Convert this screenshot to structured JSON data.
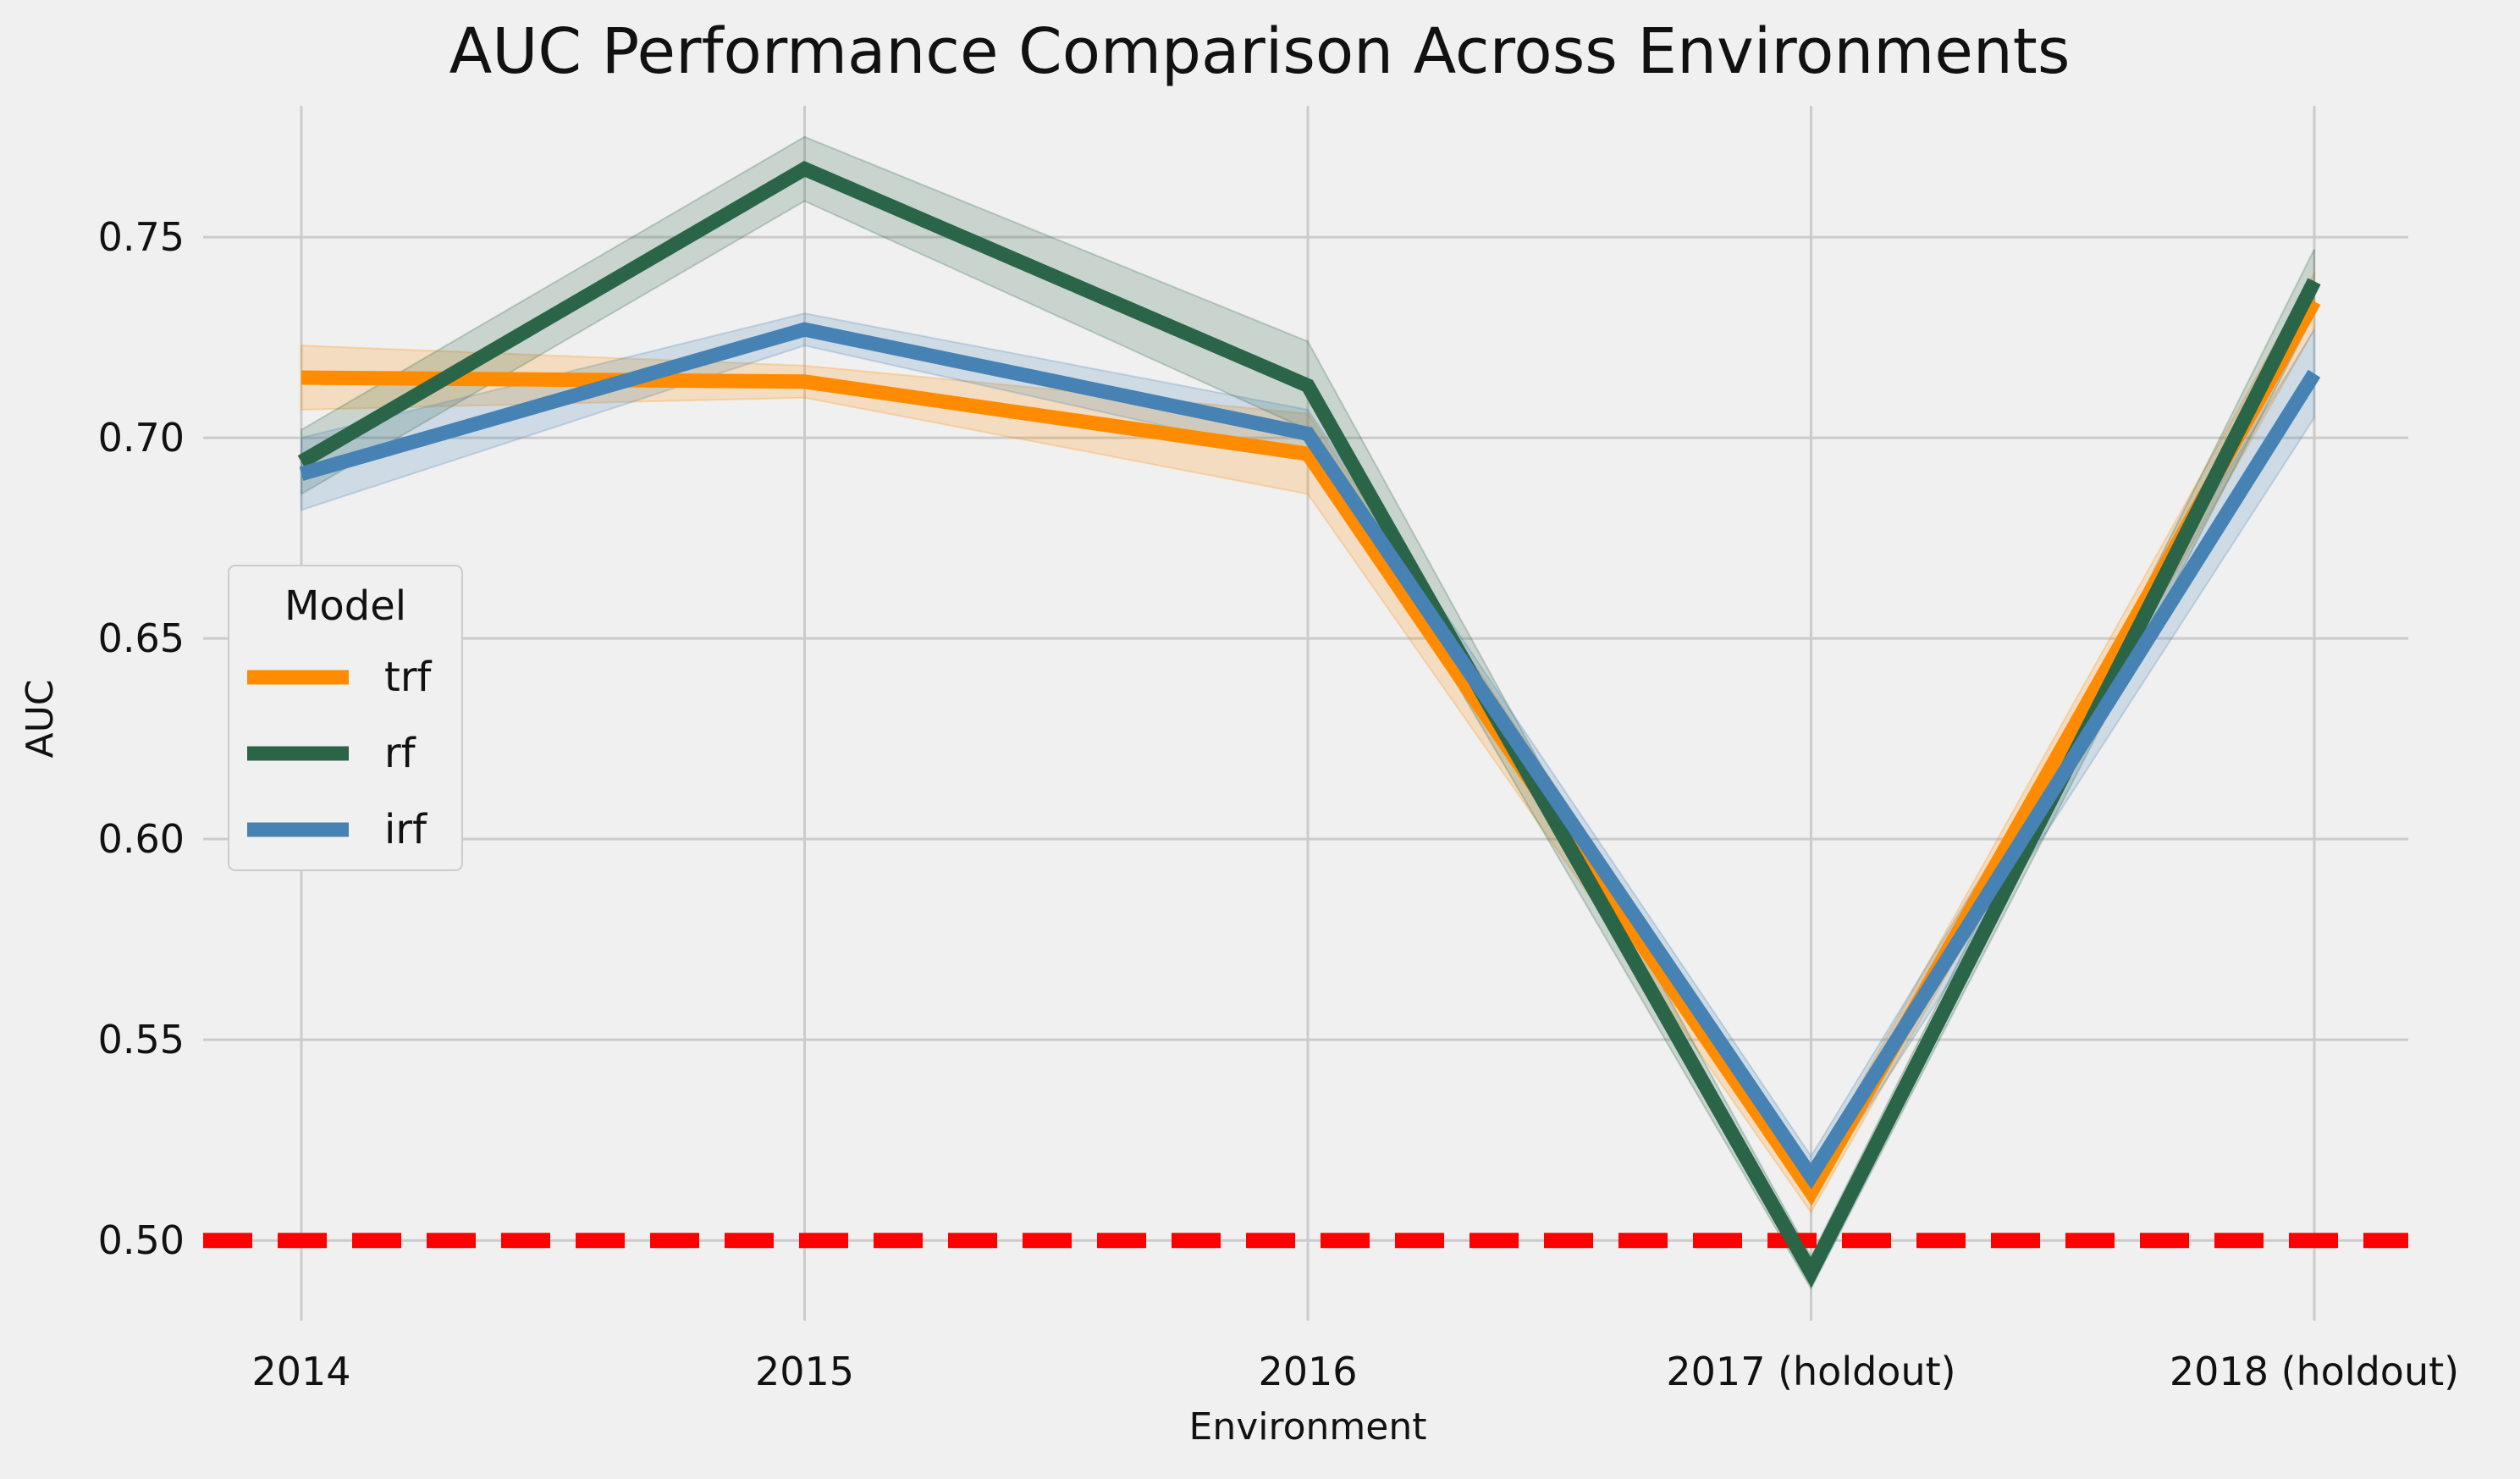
{
  "chart_data": {
    "type": "line",
    "title": "AUC Performance Comparison Across Environments",
    "xlabel": "Environment",
    "ylabel": "AUC",
    "categories": [
      "2014",
      "2015",
      "2016",
      "2017 (holdout)",
      "2018 (holdout)"
    ],
    "ylim": [
      0.48,
      0.788
    ],
    "yticks": [
      "0.50",
      "0.55",
      "0.60",
      "0.65",
      "0.70",
      "0.75"
    ],
    "ytick_values": [
      0.5,
      0.55,
      0.6,
      0.65,
      0.7,
      0.75
    ],
    "grid": true,
    "reference_line": {
      "y": 0.5,
      "color": "#ff0000",
      "style": "dashed"
    },
    "legend": {
      "title": "Model",
      "placement": "center-left"
    },
    "series": [
      {
        "name": "trf",
        "color": "#ff8c00",
        "values": [
          0.715,
          0.714,
          0.696,
          0.512,
          0.734
        ],
        "ci_lower": [
          0.707,
          0.71,
          0.686,
          0.507,
          0.727
        ],
        "ci_upper": [
          0.723,
          0.718,
          0.706,
          0.517,
          0.741
        ]
      },
      {
        "name": "rf",
        "color": "#2b6548",
        "values": [
          0.694,
          0.767,
          0.713,
          0.492,
          0.739
        ],
        "ci_lower": [
          0.686,
          0.759,
          0.702,
          0.488,
          0.731
        ],
        "ci_upper": [
          0.702,
          0.775,
          0.724,
          0.496,
          0.747
        ]
      },
      {
        "name": "irf",
        "color": "#4682b4",
        "values": [
          0.691,
          0.727,
          0.701,
          0.516,
          0.716
        ],
        "ci_lower": [
          0.682,
          0.723,
          0.695,
          0.511,
          0.705
        ],
        "ci_upper": [
          0.7,
          0.731,
          0.707,
          0.521,
          0.727
        ]
      }
    ]
  }
}
